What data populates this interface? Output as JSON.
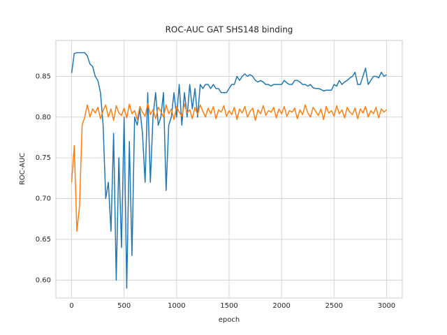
{
  "chart_data": {
    "type": "line",
    "title": "ROC-AUC GAT SHS148 binding",
    "xlabel": "epoch",
    "ylabel": "ROC-AUC",
    "x": [
      0,
      25,
      50,
      75,
      100,
      125,
      150,
      175,
      200,
      225,
      250,
      275,
      300,
      325,
      350,
      375,
      400,
      425,
      450,
      475,
      500,
      525,
      550,
      575,
      600,
      625,
      650,
      675,
      700,
      725,
      750,
      775,
      800,
      825,
      850,
      875,
      900,
      925,
      950,
      975,
      1000,
      1025,
      1050,
      1075,
      1100,
      1125,
      1150,
      1175,
      1200,
      1225,
      1250,
      1275,
      1300,
      1325,
      1350,
      1375,
      1400,
      1425,
      1450,
      1475,
      1500,
      1525,
      1550,
      1575,
      1600,
      1625,
      1650,
      1675,
      1700,
      1725,
      1750,
      1775,
      1800,
      1825,
      1850,
      1875,
      1900,
      1925,
      1950,
      1975,
      2000,
      2025,
      2050,
      2075,
      2100,
      2125,
      2150,
      2175,
      2200,
      2225,
      2250,
      2275,
      2300,
      2325,
      2350,
      2375,
      2400,
      2425,
      2450,
      2475,
      2500,
      2525,
      2550,
      2575,
      2600,
      2625,
      2650,
      2675,
      2700,
      2725,
      2750,
      2775,
      2800,
      2825,
      2850,
      2875,
      2900,
      2925,
      2950,
      2975,
      3000
    ],
    "series": [
      {
        "color": "#1f77b4",
        "values": [
          0.854,
          0.878,
          0.879,
          0.879,
          0.879,
          0.879,
          0.875,
          0.865,
          0.862,
          0.85,
          0.845,
          0.83,
          0.79,
          0.7,
          0.72,
          0.66,
          0.78,
          0.6,
          0.75,
          0.64,
          0.8,
          0.59,
          0.77,
          0.63,
          0.8,
          0.79,
          0.81,
          0.78,
          0.72,
          0.83,
          0.72,
          0.8,
          0.83,
          0.79,
          0.8,
          0.83,
          0.71,
          0.79,
          0.8,
          0.83,
          0.8,
          0.84,
          0.79,
          0.83,
          0.8,
          0.84,
          0.81,
          0.835,
          0.8,
          0.84,
          0.835,
          0.84,
          0.84,
          0.835,
          0.84,
          0.835,
          0.835,
          0.83,
          0.83,
          0.83,
          0.835,
          0.84,
          0.84,
          0.85,
          0.845,
          0.85,
          0.853,
          0.85,
          0.852,
          0.85,
          0.845,
          0.843,
          0.845,
          0.843,
          0.84,
          0.84,
          0.838,
          0.84,
          0.84,
          0.84,
          0.84,
          0.845,
          0.842,
          0.84,
          0.84,
          0.845,
          0.845,
          0.843,
          0.84,
          0.84,
          0.838,
          0.84,
          0.836,
          0.835,
          0.835,
          0.834,
          0.832,
          0.833,
          0.833,
          0.833,
          0.84,
          0.838,
          0.845,
          0.84,
          0.843,
          0.845,
          0.848,
          0.85,
          0.855,
          0.84,
          0.84,
          0.85,
          0.86,
          0.84,
          0.845,
          0.85,
          0.85,
          0.848,
          0.855,
          0.85,
          0.852
        ]
      },
      {
        "color": "#ff7f0e",
        "values": [
          0.72,
          0.765,
          0.66,
          0.69,
          0.79,
          0.8,
          0.815,
          0.8,
          0.81,
          0.805,
          0.812,
          0.798,
          0.808,
          0.815,
          0.8,
          0.81,
          0.796,
          0.814,
          0.805,
          0.802,
          0.811,
          0.799,
          0.816,
          0.804,
          0.808,
          0.797,
          0.813,
          0.806,
          0.801,
          0.817,
          0.803,
          0.809,
          0.798,
          0.812,
          0.807,
          0.8,
          0.815,
          0.804,
          0.81,
          0.797,
          0.813,
          0.806,
          0.801,
          0.816,
          0.805,
          0.809,
          0.798,
          0.812,
          0.803,
          0.815,
          0.807,
          0.8,
          0.811,
          0.804,
          0.813,
          0.798,
          0.809,
          0.806,
          0.814,
          0.801,
          0.808,
          0.803,
          0.812,
          0.797,
          0.81,
          0.805,
          0.813,
          0.8,
          0.807,
          0.811,
          0.796,
          0.809,
          0.804,
          0.814,
          0.802,
          0.808,
          0.806,
          0.812,
          0.799,
          0.81,
          0.804,
          0.813,
          0.801,
          0.808,
          0.806,
          0.811,
          0.798,
          0.809,
          0.803,
          0.815,
          0.805,
          0.8,
          0.812,
          0.807,
          0.802,
          0.81,
          0.797,
          0.813,
          0.805,
          0.808,
          0.801,
          0.814,
          0.804,
          0.809,
          0.799,
          0.812,
          0.806,
          0.803,
          0.811,
          0.798,
          0.81,
          0.805,
          0.813,
          0.8,
          0.808,
          0.804,
          0.812,
          0.799,
          0.81,
          0.806,
          0.809
        ]
      }
    ],
    "xlim": [
      -150,
      3150
    ],
    "ylim": [
      0.578,
      0.894
    ],
    "xticks": [
      0,
      500,
      1000,
      1500,
      2000,
      2500,
      3000
    ],
    "yticks": [
      {
        "value": 0.6,
        "label": "0.60"
      },
      0.65,
      {
        "value": 0.7,
        "label": "0.70"
      },
      0.75,
      {
        "value": 0.8,
        "label": "0.80"
      },
      0.85
    ],
    "grid": true
  }
}
